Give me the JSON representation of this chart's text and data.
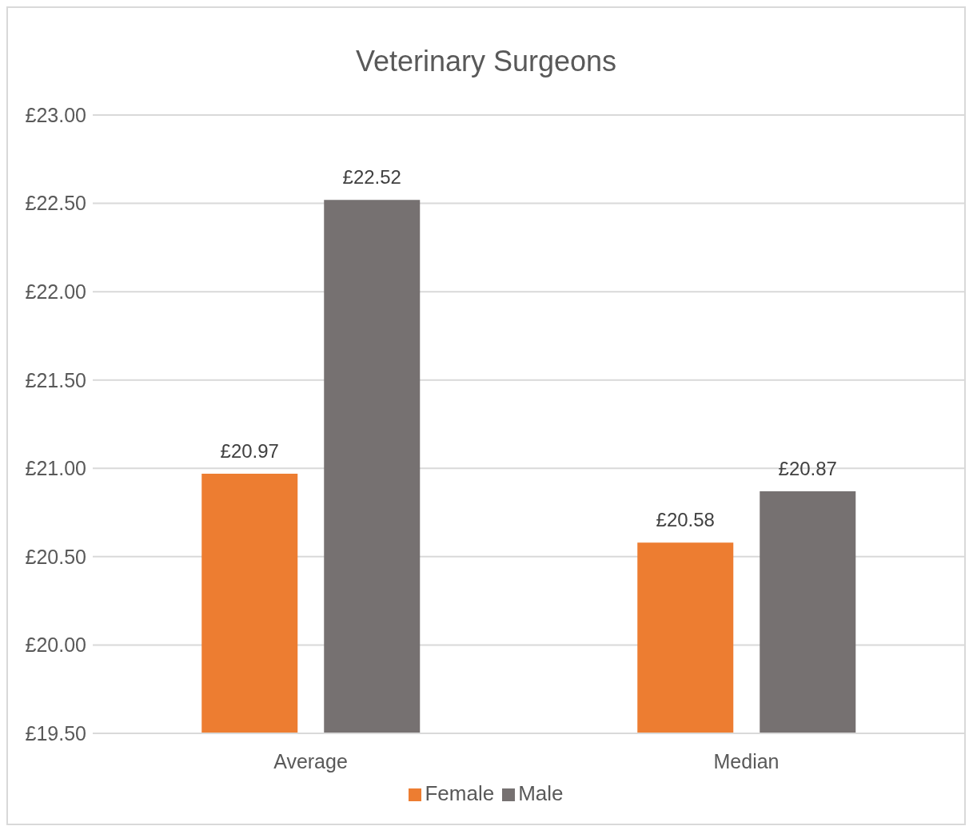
{
  "chart_data": {
    "type": "bar",
    "title": "Veterinary Surgeons",
    "categories": [
      "Average",
      "Median"
    ],
    "series": [
      {
        "name": "Female",
        "color": "#ed7d31",
        "values": [
          20.97,
          20.58
        ],
        "value_labels": [
          "£20.97",
          "£20.58"
        ]
      },
      {
        "name": "Male",
        "color": "#767171",
        "values": [
          22.52,
          20.87
        ],
        "value_labels": [
          "£22.52",
          "£20.87"
        ]
      }
    ],
    "ylim": [
      19.5,
      23
    ],
    "yticks": [
      {
        "value": 19.5,
        "label": "£19.50"
      },
      {
        "value": 20,
        "label": "£20.00"
      },
      {
        "value": 20.5,
        "label": "£20.50"
      },
      {
        "value": 21,
        "label": "£21.00"
      },
      {
        "value": 21.5,
        "label": "£21.50"
      },
      {
        "value": 22,
        "label": "£22.00"
      },
      {
        "value": 22.5,
        "label": "£22.50"
      },
      {
        "value": 23,
        "label": "£23.00"
      }
    ],
    "grid": "y",
    "legend": "bottom"
  }
}
